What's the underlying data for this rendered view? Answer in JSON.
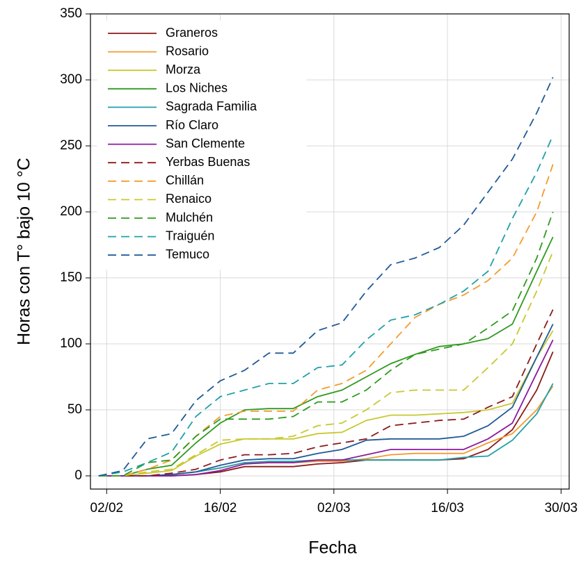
{
  "chart_data": {
    "type": "line",
    "x_label": "Fecha",
    "y_label": "Horas con T° bajo 10 °C",
    "x": [
      "01/02",
      "04/02",
      "07/02",
      "10/02",
      "13/02",
      "16/02",
      "19/02",
      "22/02",
      "25/02",
      "28/02",
      "03/03",
      "06/03",
      "09/03",
      "12/03",
      "15/03",
      "18/03",
      "21/03",
      "24/03",
      "27/03",
      "29/03"
    ],
    "xlim": [
      "31/01",
      "31/03"
    ],
    "xticks": [
      "02/02",
      "16/02",
      "02/03",
      "16/03",
      "30/03"
    ],
    "ylim": [
      -10,
      350
    ],
    "yticks": [
      0,
      50,
      100,
      150,
      200,
      250,
      300,
      350
    ],
    "grid": true,
    "legend": "upper left",
    "series": [
      {
        "name": "Graneros",
        "color": "#8b1a1a",
        "style": "solid",
        "values": [
          0,
          0,
          0,
          0,
          1,
          3,
          7,
          7,
          7,
          9,
          10,
          12,
          12,
          12,
          12,
          13,
          20,
          35,
          65,
          94
        ]
      },
      {
        "name": "Rosario",
        "color": "#f39b2e",
        "style": "solid",
        "values": [
          0,
          0,
          0,
          1,
          3,
          6,
          10,
          10,
          10,
          11,
          11,
          13,
          16,
          17,
          17,
          17,
          25,
          32,
          50,
          68
        ]
      },
      {
        "name": "Morza",
        "color": "#c8c832",
        "style": "solid",
        "values": [
          0,
          0,
          2,
          4,
          15,
          24,
          28,
          28,
          28,
          32,
          33,
          42,
          46,
          46,
          47,
          48,
          50,
          55,
          90,
          110
        ]
      },
      {
        "name": "Los Niches",
        "color": "#2e9a1e",
        "style": "solid",
        "values": [
          0,
          0,
          5,
          8,
          25,
          40,
          50,
          51,
          51,
          60,
          65,
          75,
          85,
          92,
          98,
          100,
          104,
          115,
          155,
          181
        ]
      },
      {
        "name": "Sagrada Familia",
        "color": "#1fa0a8",
        "style": "solid",
        "values": [
          0,
          0,
          0,
          1,
          3,
          6,
          10,
          11,
          11,
          12,
          12,
          12,
          12,
          12,
          12,
          14,
          15,
          27,
          47,
          70
        ]
      },
      {
        "name": "Río Claro",
        "color": "#1f5a96",
        "style": "solid",
        "values": [
          0,
          0,
          0,
          1,
          3,
          8,
          12,
          13,
          13,
          17,
          20,
          27,
          28,
          28,
          28,
          30,
          38,
          52,
          90,
          115
        ]
      },
      {
        "name": "San Clemente",
        "color": "#8a1aa0",
        "style": "solid",
        "values": [
          0,
          0,
          0,
          0,
          1,
          4,
          9,
          10,
          10,
          12,
          12,
          16,
          20,
          20,
          20,
          20,
          28,
          40,
          78,
          103
        ]
      },
      {
        "name": "Yerbas Buenas",
        "color": "#8b1a1a",
        "style": "dashed",
        "values": [
          0,
          0,
          0,
          2,
          5,
          12,
          16,
          16,
          17,
          22,
          25,
          28,
          38,
          40,
          42,
          43,
          52,
          60,
          100,
          126
        ]
      },
      {
        "name": "Chillán",
        "color": "#f39b2e",
        "style": "dashed",
        "values": [
          0,
          0,
          5,
          12,
          30,
          45,
          49,
          49,
          49,
          65,
          70,
          80,
          100,
          120,
          130,
          137,
          148,
          165,
          200,
          236
        ]
      },
      {
        "name": "Renaico",
        "color": "#c8c832",
        "style": "dashed",
        "values": [
          0,
          0,
          3,
          5,
          16,
          27,
          28,
          28,
          30,
          38,
          40,
          50,
          63,
          65,
          65,
          65,
          82,
          100,
          140,
          170
        ]
      },
      {
        "name": "Mulchén",
        "color": "#2e9a1e",
        "style": "dashed",
        "values": [
          0,
          0,
          10,
          12,
          30,
          43,
          43,
          43,
          45,
          56,
          56,
          65,
          80,
          92,
          96,
          100,
          112,
          125,
          165,
          200
        ]
      },
      {
        "name": "Traiguén",
        "color": "#1fa0a8",
        "style": "dashed",
        "values": [
          0,
          3,
          10,
          18,
          45,
          60,
          65,
          70,
          70,
          82,
          84,
          103,
          118,
          122,
          130,
          140,
          155,
          195,
          230,
          258
        ]
      },
      {
        "name": "Temuco",
        "color": "#1f5a96",
        "style": "dashed",
        "values": [
          0,
          4,
          28,
          32,
          57,
          72,
          80,
          93,
          93,
          110,
          116,
          140,
          160,
          165,
          173,
          190,
          215,
          240,
          275,
          302
        ]
      }
    ]
  }
}
